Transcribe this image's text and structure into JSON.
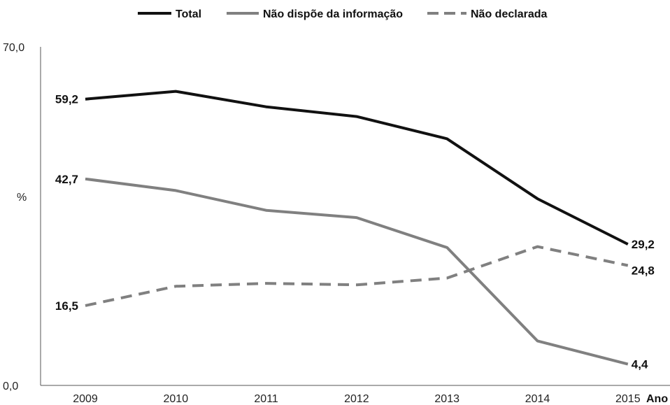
{
  "chart_data": {
    "type": "line",
    "title": "",
    "xlabel": "Ano",
    "ylabel": "%",
    "ylim": [
      0,
      70
    ],
    "y_tick_labels": [
      "70,0",
      "0,0"
    ],
    "categories": [
      "2009",
      "2010",
      "2011",
      "2012",
      "2013",
      "2014",
      "2015"
    ],
    "legend_position": "top-center",
    "grid": false,
    "series": [
      {
        "name": "Total",
        "values": [
          59.2,
          60.8,
          57.6,
          55.6,
          51.0,
          38.6,
          29.2
        ],
        "color": "#111111",
        "style": "solid",
        "labels": {
          "first": "59,2",
          "last": "29,2"
        }
      },
      {
        "name": "Não dispõe da informação",
        "values": [
          42.7,
          40.3,
          36.2,
          34.7,
          28.5,
          9.2,
          4.4
        ],
        "color": "#808080",
        "style": "solid",
        "labels": {
          "first": "42,7",
          "last": "4,4"
        }
      },
      {
        "name": "Não declarada",
        "values": [
          16.5,
          20.5,
          21.1,
          20.8,
          22.2,
          28.7,
          24.8
        ],
        "color": "#808080",
        "style": "dashed",
        "labels": {
          "first": "16,5",
          "last": "24,8"
        }
      }
    ]
  }
}
